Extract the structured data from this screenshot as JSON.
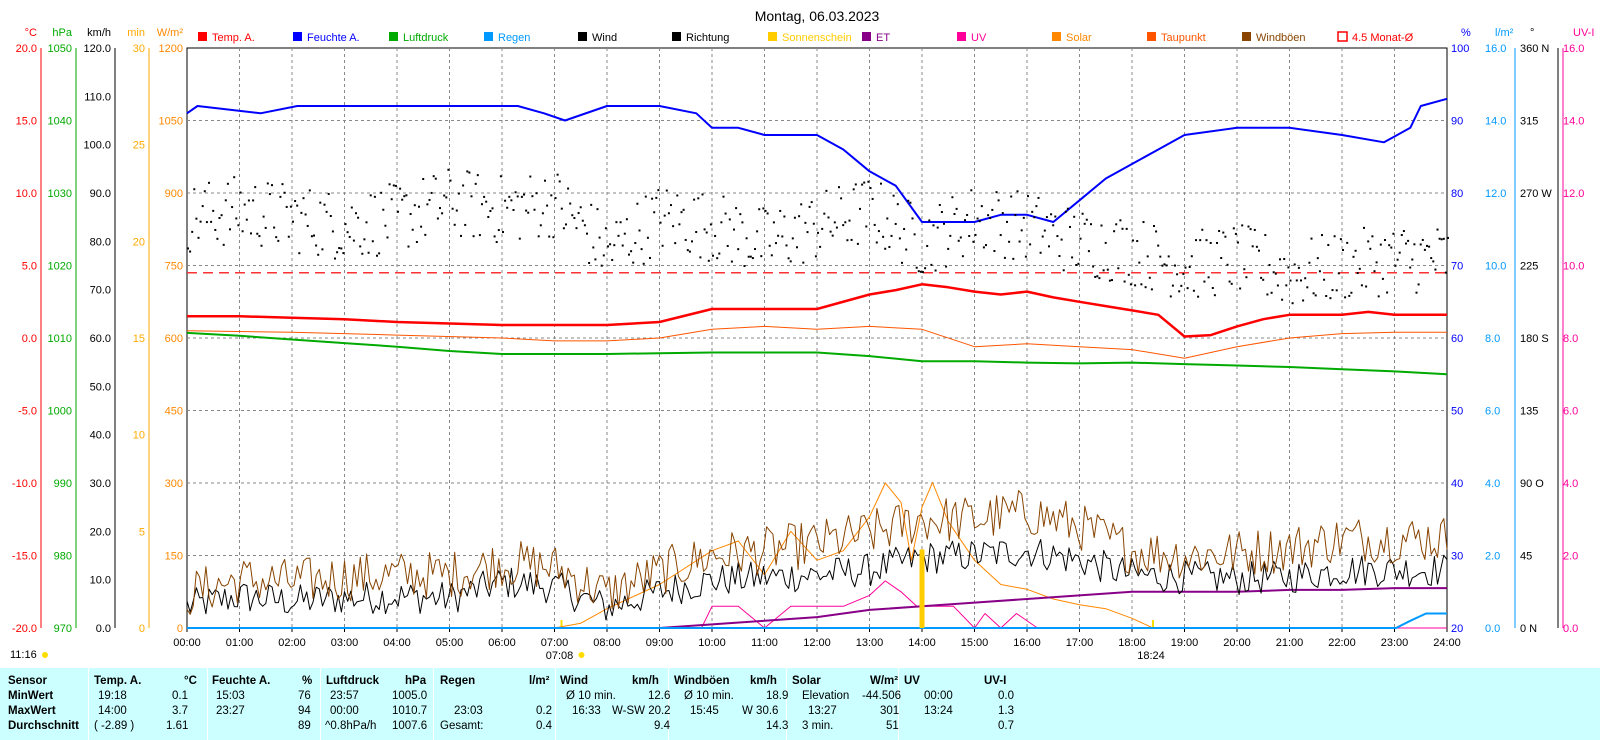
{
  "title": "Montag, 06.03.2023",
  "chart_data": {
    "type": "line",
    "title": "Montag, 06.03.2023",
    "x_range_hours": [
      0,
      24
    ],
    "x_ticks": [
      "00:00",
      "01:00",
      "02:00",
      "03:00",
      "04:00",
      "05:00",
      "06:00",
      "07:00",
      "08:00",
      "09:00",
      "10:00",
      "11:00",
      "12:00",
      "13:00",
      "14:00",
      "15:00",
      "16:00",
      "17:00",
      "18:00",
      "19:00",
      "20:00",
      "21:00",
      "22:00",
      "23:00",
      "24:00"
    ],
    "grid": true,
    "legend_position": "top",
    "legend": [
      {
        "label": "Temp. A.",
        "color": "#ff0000"
      },
      {
        "label": "Feuchte A.",
        "color": "#0000ff"
      },
      {
        "label": "Luftdruck",
        "color": "#00aa00"
      },
      {
        "label": "Regen",
        "color": "#0099ff"
      },
      {
        "label": "Wind",
        "color": "#000000"
      },
      {
        "label": "Richtung",
        "color": "#000000"
      },
      {
        "label": "Sonnenschein",
        "color": "#ffcc00"
      },
      {
        "label": "ET",
        "color": "#880088"
      },
      {
        "label": "UV",
        "color": "#ff0099"
      },
      {
        "label": "Solar",
        "color": "#ff8800"
      },
      {
        "label": "Taupunkt",
        "color": "#ff5500"
      },
      {
        "label": "Windböen",
        "color": "#884400"
      },
      {
        "label": "4.5 Monat-Ø",
        "color": "#ff0000"
      }
    ],
    "axes": {
      "temp": {
        "unit": "°C",
        "color": "#ff0000",
        "range": [
          -20,
          20
        ],
        "ticks": [
          "20.0",
          "15.0",
          "10.0",
          "5.0",
          "0.0",
          "-5.0",
          "-10.0",
          "-15.0",
          "-20.0"
        ]
      },
      "pressure": {
        "unit": "hPa",
        "color": "#00aa00",
        "range": [
          970,
          1050
        ],
        "ticks": [
          "1050",
          "1040",
          "1030",
          "1020",
          "1010",
          "1000",
          "990",
          "980",
          "970"
        ]
      },
      "wind": {
        "unit": "km/h",
        "color": "#000000",
        "range": [
          0,
          120
        ],
        "ticks": [
          "120.0",
          "110.0",
          "100.0",
          "90.0",
          "80.0",
          "70.0",
          "60.0",
          "50.0",
          "40.0",
          "30.0",
          "20.0",
          "10.0",
          "0.0"
        ]
      },
      "sunshine": {
        "unit": "min",
        "color": "#ffaa00",
        "range": [
          0,
          30
        ],
        "ticks": [
          "30",
          "25",
          "20",
          "15",
          "10",
          "5",
          "0"
        ]
      },
      "solar": {
        "unit": "W/m²",
        "color": "#ff8800",
        "range": [
          0,
          1200
        ],
        "ticks": [
          "1200",
          "1050",
          "900",
          "750",
          "600",
          "450",
          "300",
          "150",
          "0"
        ]
      },
      "humidity": {
        "unit": "%",
        "color": "#0000ff",
        "range": [
          20,
          100
        ],
        "ticks": [
          "100",
          "90",
          "80",
          "70",
          "60",
          "50",
          "40",
          "30",
          "20"
        ]
      },
      "rain": {
        "unit": "l/m²",
        "color": "#0099ff",
        "range": [
          0,
          16
        ],
        "ticks": [
          "16.0",
          "14.0",
          "12.0",
          "10.0",
          "8.0",
          "6.0",
          "4.0",
          "2.0",
          "0.0"
        ]
      },
      "direction": {
        "unit": "°",
        "color": "#000000",
        "range": [
          0,
          360
        ],
        "ticks": [
          "360 N",
          "315",
          "270 W",
          "225",
          "180 S",
          "135",
          "90 O",
          "45",
          "0 N"
        ]
      },
      "uv": {
        "unit": "UV-I",
        "color": "#ff0099",
        "range": [
          0,
          16
        ],
        "ticks": [
          "16.0",
          "14.0",
          "12.0",
          "10.0",
          "8.0",
          "6.0",
          "4.0",
          "2.0",
          "0.0"
        ]
      }
    },
    "markers": {
      "sunrise": "07:08",
      "sunset": "18:24",
      "left_time": "11:16"
    },
    "monthly_avg_temp": 4.5,
    "series": [
      {
        "name": "Temp. A.",
        "axis": "temp",
        "color": "#ff0000",
        "width": 2.5,
        "x": [
          0,
          1,
          2,
          3,
          4,
          5,
          6,
          7,
          8,
          9,
          10,
          11,
          12,
          13,
          13.5,
          14,
          14.5,
          15,
          15.5,
          16,
          16.5,
          17,
          17.5,
          18,
          18.5,
          19,
          19.5,
          20,
          20.5,
          21,
          22,
          22.5,
          23,
          24
        ],
        "y": [
          1.5,
          1.5,
          1.4,
          1.3,
          1.1,
          1.0,
          0.9,
          0.9,
          0.9,
          1.1,
          2.0,
          2.0,
          2.0,
          3.0,
          3.3,
          3.7,
          3.5,
          3.2,
          3.0,
          3.2,
          2.8,
          2.5,
          2.2,
          1.9,
          1.6,
          0.1,
          0.2,
          0.8,
          1.3,
          1.6,
          1.6,
          1.8,
          1.6,
          1.6
        ]
      },
      {
        "name": "Feuchte A.",
        "axis": "humidity",
        "color": "#0000ff",
        "width": 2,
        "x": [
          0,
          0.2,
          1.4,
          2.1,
          4,
          6.3,
          6.8,
          7.2,
          8,
          9,
          9.7,
          10,
          10.5,
          11,
          12,
          12.5,
          13,
          13.5,
          14,
          14.5,
          15,
          15.5,
          16,
          16.5,
          17,
          17.5,
          18,
          18.5,
          19,
          20,
          21,
          22,
          22.8,
          23.3,
          23.5,
          24
        ],
        "y": [
          91,
          92,
          91,
          92,
          92,
          92,
          91,
          90,
          92,
          92,
          91,
          89,
          89,
          88,
          88,
          86,
          83,
          81,
          76,
          76,
          76,
          77,
          77,
          76,
          79,
          82,
          84,
          86,
          88,
          89,
          89,
          88,
          87,
          89,
          92,
          93
        ]
      },
      {
        "name": "Luftdruck",
        "axis": "pressure",
        "color": "#00aa00",
        "width": 2,
        "x": [
          0,
          1,
          2,
          3,
          4,
          5,
          6,
          7,
          8,
          9,
          10,
          11,
          12,
          13,
          14,
          15,
          16,
          17,
          18,
          19,
          20,
          21,
          22,
          23,
          24
        ],
        "y": [
          1010.7,
          1010.3,
          1009.8,
          1009.3,
          1008.8,
          1008.2,
          1007.8,
          1007.8,
          1007.8,
          1007.9,
          1008.0,
          1008.0,
          1008.0,
          1007.5,
          1006.8,
          1006.8,
          1006.6,
          1006.5,
          1006.6,
          1006.4,
          1006.2,
          1006.0,
          1005.7,
          1005.4,
          1005.0
        ]
      },
      {
        "name": "Taupunkt",
        "axis": "temp",
        "color": "#ff5500",
        "width": 1,
        "x": [
          0,
          2,
          4,
          6,
          7,
          8,
          9,
          10,
          11,
          12,
          13,
          14,
          15,
          16,
          17,
          18,
          19,
          20,
          21,
          22,
          23,
          24
        ],
        "y": [
          0.5,
          0.4,
          0.2,
          0.0,
          -0.2,
          -0.2,
          0.0,
          0.6,
          0.8,
          0.6,
          0.8,
          0.6,
          -0.6,
          -0.4,
          -0.6,
          -0.8,
          -1.4,
          -0.6,
          0.0,
          0.3,
          0.4,
          0.4
        ]
      },
      {
        "name": "Solar",
        "axis": "solar",
        "color": "#ff8800",
        "width": 1,
        "x": [
          0,
          7,
          7.5,
          8,
          9,
          10,
          10.5,
          11,
          11.5,
          12,
          12.5,
          13,
          13.3,
          13.6,
          13.8,
          14,
          14.2,
          14.5,
          15,
          15.5,
          16,
          16.5,
          17,
          17.5,
          18,
          18.4,
          24
        ],
        "y": [
          0,
          0,
          10,
          40,
          90,
          160,
          180,
          110,
          200,
          140,
          160,
          230,
          300,
          260,
          140,
          250,
          301,
          220,
          140,
          90,
          80,
          60,
          48,
          40,
          20,
          0,
          0
        ]
      },
      {
        "name": "UV",
        "axis": "uv",
        "color": "#ff0099",
        "width": 1,
        "x": [
          0,
          9.8,
          10,
          10.5,
          11,
          11.5,
          12,
          12.5,
          13,
          13.3,
          13.6,
          13.9,
          14.2,
          14.6,
          15,
          15.2,
          15.5,
          15.8,
          16.2,
          24
        ],
        "y": [
          0,
          0,
          0.6,
          0.6,
          0,
          0.6,
          0.6,
          0.6,
          0.9,
          1.3,
          1.0,
          0.6,
          0.6,
          0.6,
          0.0,
          0.4,
          0.0,
          0.4,
          0.0,
          0.0
        ]
      },
      {
        "name": "ET",
        "axis": "rain",
        "color": "#880088",
        "width": 2,
        "x": [
          0,
          9,
          10,
          11,
          12,
          13,
          14,
          15,
          16,
          17,
          18,
          19,
          20,
          21,
          22,
          23,
          24
        ],
        "y": [
          0,
          0,
          0.1,
          0.2,
          0.3,
          0.5,
          0.6,
          0.7,
          0.8,
          0.9,
          1.0,
          1.0,
          1.0,
          1.05,
          1.05,
          1.1,
          1.1
        ]
      },
      {
        "name": "Regen",
        "axis": "rain",
        "color": "#0099ff",
        "width": 2,
        "x": [
          0,
          23.03,
          23.3,
          23.6,
          24
        ],
        "y": [
          0,
          0,
          0.2,
          0.4,
          0.4
        ]
      },
      {
        "name": "Wind",
        "axis": "wind",
        "color": "#000000",
        "width": 1,
        "x": [
          0,
          1,
          2,
          3,
          4,
          5,
          6,
          7,
          8,
          9,
          10,
          11,
          12,
          13,
          14,
          15,
          16,
          17,
          18,
          19,
          20,
          21,
          22,
          23,
          24
        ],
        "y": [
          4.5,
          6.5,
          5.5,
          6.2,
          6.5,
          6.2,
          9.5,
          8.5,
          4.2,
          7.5,
          9.8,
          10.5,
          11.0,
          12.0,
          14.5,
          15.0,
          16.0,
          14.0,
          11.0,
          10.5,
          10.2,
          10.5,
          12.0,
          12.0,
          12.0
        ],
        "noise": 3.5
      },
      {
        "name": "Windböen",
        "axis": "wind",
        "color": "#884400",
        "width": 1,
        "x": [
          0,
          1,
          2,
          3,
          4,
          5,
          6,
          7,
          8,
          9,
          10,
          11,
          12,
          13,
          14,
          15,
          16,
          17,
          18,
          19,
          20,
          21,
          22,
          23,
          24
        ],
        "y": [
          7.0,
          10.0,
          9.5,
          10.5,
          11.0,
          11.0,
          13.5,
          12.5,
          7.0,
          11.5,
          15.0,
          16.0,
          17.5,
          19.5,
          22.5,
          22.5,
          24.0,
          21.0,
          16.0,
          15.0,
          15.5,
          16.5,
          18.5,
          18.5,
          18.5
        ],
        "noise": 5.0
      },
      {
        "name": "Richtung",
        "axis": "direction",
        "color": "#000000",
        "style": "dots",
        "x": [
          0,
          1,
          2,
          3,
          4,
          5,
          6,
          7,
          8,
          9,
          10,
          11,
          12,
          13,
          14,
          15,
          16,
          17,
          18,
          19,
          20,
          21,
          22,
          23,
          24
        ],
        "y": [
          255,
          260,
          255,
          250,
          255,
          265,
          260,
          265,
          235,
          255,
          250,
          240,
          250,
          260,
          240,
          255,
          250,
          240,
          235,
          225,
          230,
          220,
          225,
          230,
          230
        ],
        "noise": 22
      },
      {
        "name": "Sonnenschein",
        "axis": "sunshine",
        "color": "#ffcc00",
        "width": 3,
        "x": [
          13.98,
          13.98,
          14.02,
          14.02
        ],
        "y": [
          0,
          4.0,
          4.0,
          0
        ]
      }
    ]
  },
  "stats": {
    "headers": [
      "Sensor",
      "Temp. A.",
      "°C",
      "Feuchte A.",
      "%",
      "Luftdruck",
      "hPa",
      "Regen",
      "l/m²",
      "Wind",
      "km/h",
      "Windböen",
      "km/h",
      "Solar",
      "W/m²",
      "UV",
      "UV-I"
    ],
    "row_labels": [
      "MinWert",
      "MaxWert",
      "Durchschnitt"
    ],
    "temp": [
      [
        "19:18",
        "0.1"
      ],
      [
        "14:00",
        "3.7"
      ],
      [
        "( -2.89 )",
        "1.61"
      ]
    ],
    "humidity": [
      [
        "15:03",
        "76"
      ],
      [
        "23:27",
        "94"
      ],
      [
        "",
        "89"
      ]
    ],
    "pressure": [
      [
        "23:57",
        "1005.0"
      ],
      [
        "00:00",
        "1010.7"
      ],
      [
        "^0.8hPa/h",
        "1007.6"
      ]
    ],
    "rain": [
      [
        "",
        ""
      ],
      [
        "23:03",
        "0.2"
      ],
      [
        "Gesamt:",
        "0.4"
      ]
    ],
    "wind": [
      [
        "Ø 10 min.",
        "12.6"
      ],
      [
        "16:33",
        "W-SW 20.2"
      ],
      [
        "",
        "9.4"
      ]
    ],
    "gusts": [
      [
        "Ø 10 min.",
        "18.9"
      ],
      [
        "15:45",
        "W 30.6"
      ],
      [
        "",
        "14.3"
      ]
    ],
    "solar": [
      [
        "Elevation",
        "-44.506"
      ],
      [
        "13:27",
        "301"
      ],
      [
        "3 min.",
        "51"
      ]
    ],
    "uv": [
      [
        "00:00",
        "0.0"
      ],
      [
        "13:24",
        "1.3"
      ],
      [
        "",
        "0.7"
      ]
    ]
  }
}
